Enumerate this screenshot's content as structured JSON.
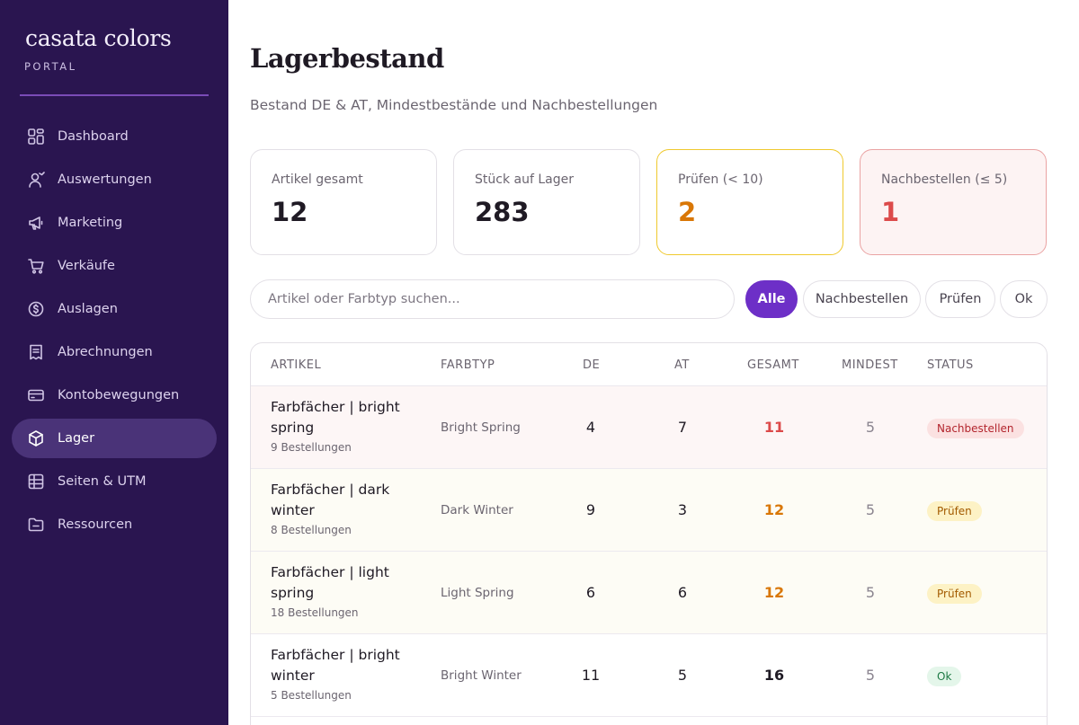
{
  "brand": {
    "name": "casata colors",
    "sub": "PORTAL"
  },
  "nav": [
    {
      "label": "Dashboard",
      "icon": "dashboard-icon"
    },
    {
      "label": "Auswertungen",
      "icon": "analytics-icon"
    },
    {
      "label": "Marketing",
      "icon": "megaphone-icon"
    },
    {
      "label": "Verkäufe",
      "icon": "cart-icon"
    },
    {
      "label": "Auslagen",
      "icon": "coin-icon"
    },
    {
      "label": "Abrechnungen",
      "icon": "receipt-icon"
    },
    {
      "label": "Kontobewegungen",
      "icon": "card-icon"
    },
    {
      "label": "Lager",
      "icon": "box-icon",
      "active": true
    },
    {
      "label": "Seiten & UTM",
      "icon": "table-icon"
    },
    {
      "label": "Ressourcen",
      "icon": "folder-icon"
    }
  ],
  "page": {
    "title": "Lagerbestand",
    "subtitle": "Bestand DE & AT, Mindestbestände und Nachbestellungen"
  },
  "stats": [
    {
      "label": "Artikel gesamt",
      "value": "12",
      "tone": "normal"
    },
    {
      "label": "Stück auf Lager",
      "value": "283",
      "tone": "normal"
    },
    {
      "label": "Prüfen (< 10)",
      "value": "2",
      "tone": "warn"
    },
    {
      "label": "Nachbestellen (≤ 5)",
      "value": "1",
      "tone": "danger"
    }
  ],
  "search": {
    "placeholder": "Artikel oder Farbtyp suchen..."
  },
  "filters": [
    {
      "label": "Alle",
      "active": true
    },
    {
      "label": "Nachbestellen",
      "active": false
    },
    {
      "label": "Prüfen",
      "active": false
    },
    {
      "label": "Ok",
      "active": false
    }
  ],
  "table": {
    "headers": {
      "artikel": "ARTIKEL",
      "farbtyp": "FARBTYP",
      "de": "DE",
      "at": "AT",
      "gesamt": "GESAMT",
      "mindest": "MINDEST",
      "status": "STATUS"
    },
    "rows": [
      {
        "name": "Farbfächer | bright spring",
        "orders": "9 Bestellungen",
        "type": "Bright Spring",
        "de": "4",
        "at": "7",
        "total": "11",
        "min": "5",
        "status": "Nachbestellen",
        "tone": "danger"
      },
      {
        "name": "Farbfächer | dark winter",
        "orders": "8 Bestellungen",
        "type": "Dark Winter",
        "de": "9",
        "at": "3",
        "total": "12",
        "min": "5",
        "status": "Prüfen",
        "tone": "warn"
      },
      {
        "name": "Farbfächer | light spring",
        "orders": "18 Bestellungen",
        "type": "Light Spring",
        "de": "6",
        "at": "6",
        "total": "12",
        "min": "5",
        "status": "Prüfen",
        "tone": "warn"
      },
      {
        "name": "Farbfächer | bright winter",
        "orders": "5 Bestellungen",
        "type": "Bright Winter",
        "de": "11",
        "at": "5",
        "total": "16",
        "min": "5",
        "status": "Ok",
        "tone": "ok"
      }
    ]
  },
  "colors": {
    "sidebar": "#2a1550",
    "accent": "#6d2fc7",
    "danger": "#dc4a4a",
    "warn": "#d97706"
  }
}
